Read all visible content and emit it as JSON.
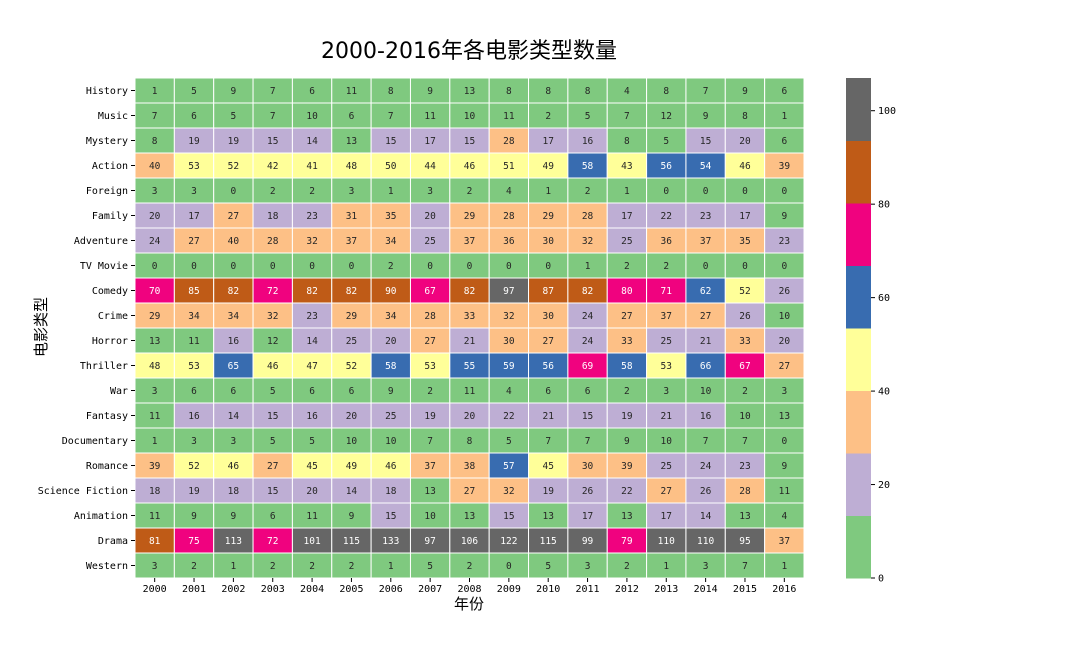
{
  "chart_data": {
    "type": "heatmap",
    "title": "2000-2016年各电影类型数量",
    "xlabel": "年份",
    "ylabel": "电影类型",
    "x": [
      "2000",
      "2001",
      "2002",
      "2003",
      "2004",
      "2005",
      "2006",
      "2007",
      "2008",
      "2009",
      "2010",
      "2011",
      "2012",
      "2013",
      "2014",
      "2015",
      "2016"
    ],
    "y": [
      "History",
      "Music",
      "Mystery",
      "Action",
      "Foreign",
      "Family",
      "Adventure",
      "TV Movie",
      "Comedy",
      "Crime",
      "Horror",
      "Thriller",
      "War",
      "Fantasy",
      "Documentary",
      "Romance",
      "Science Fiction",
      "Animation",
      "Drama",
      "Western"
    ],
    "values": [
      [
        1,
        5,
        9,
        7,
        6,
        11,
        8,
        9,
        13,
        8,
        8,
        8,
        4,
        8,
        7,
        9,
        6
      ],
      [
        7,
        6,
        5,
        7,
        10,
        6,
        7,
        11,
        10,
        11,
        2,
        5,
        7,
        12,
        9,
        8,
        1
      ],
      [
        8,
        19,
        19,
        15,
        14,
        13,
        15,
        17,
        15,
        28,
        17,
        16,
        8,
        5,
        15,
        20,
        6
      ],
      [
        40,
        53,
        52,
        42,
        41,
        48,
        50,
        44,
        46,
        51,
        49,
        58,
        43,
        56,
        54,
        46,
        39
      ],
      [
        3,
        3,
        0,
        2,
        2,
        3,
        1,
        3,
        2,
        4,
        1,
        2,
        1,
        0,
        0,
        0,
        0
      ],
      [
        20,
        17,
        27,
        18,
        23,
        31,
        35,
        20,
        29,
        28,
        29,
        28,
        17,
        22,
        23,
        17,
        9
      ],
      [
        24,
        27,
        40,
        28,
        32,
        37,
        34,
        25,
        37,
        36,
        30,
        32,
        25,
        36,
        37,
        35,
        23
      ],
      [
        0,
        0,
        0,
        0,
        0,
        0,
        2,
        0,
        0,
        0,
        0,
        1,
        2,
        2,
        0,
        0,
        0
      ],
      [
        70,
        85,
        82,
        72,
        82,
        82,
        90,
        67,
        82,
        97,
        87,
        82,
        80,
        71,
        62,
        52,
        26
      ],
      [
        29,
        34,
        34,
        32,
        23,
        29,
        34,
        28,
        33,
        32,
        30,
        24,
        27,
        37,
        27,
        26,
        10
      ],
      [
        13,
        11,
        16,
        12,
        14,
        25,
        20,
        27,
        21,
        30,
        27,
        24,
        33,
        25,
        21,
        33,
        20
      ],
      [
        48,
        53,
        65,
        46,
        47,
        52,
        58,
        53,
        55,
        59,
        56,
        69,
        58,
        53,
        66,
        67,
        27
      ],
      [
        3,
        6,
        6,
        5,
        6,
        6,
        9,
        2,
        11,
        4,
        6,
        6,
        2,
        3,
        10,
        2,
        3
      ],
      [
        11,
        16,
        14,
        15,
        16,
        20,
        25,
        19,
        20,
        22,
        21,
        15,
        19,
        21,
        16,
        10,
        13
      ],
      [
        1,
        3,
        3,
        5,
        5,
        10,
        10,
        7,
        8,
        5,
        7,
        7,
        9,
        10,
        7,
        7,
        0
      ],
      [
        39,
        52,
        46,
        27,
        45,
        49,
        46,
        37,
        38,
        57,
        45,
        30,
        39,
        25,
        24,
        23,
        9
      ],
      [
        18,
        19,
        18,
        15,
        20,
        14,
        18,
        13,
        27,
        32,
        19,
        26,
        22,
        27,
        26,
        28,
        11
      ],
      [
        11,
        9,
        9,
        6,
        11,
        9,
        15,
        10,
        13,
        15,
        13,
        17,
        13,
        17,
        14,
        13,
        4
      ],
      [
        81,
        75,
        113,
        72,
        101,
        115,
        133,
        97,
        106,
        122,
        115,
        99,
        79,
        110,
        110,
        95,
        37
      ],
      [
        3,
        2,
        1,
        2,
        2,
        2,
        1,
        5,
        2,
        0,
        5,
        3,
        2,
        1,
        3,
        7,
        1
      ]
    ],
    "colormap": "Accent",
    "colors": [
      "#7fc97f",
      "#beaed4",
      "#fdc086",
      "#ffff99",
      "#386cb0",
      "#f0027f",
      "#bf5b17",
      "#666666"
    ],
    "vmin": 0,
    "vmax": 107,
    "colorbar_ticks": [
      0,
      20,
      40,
      60,
      80,
      100
    ]
  }
}
